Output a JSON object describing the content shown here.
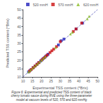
{
  "chart_data": {
    "type": "scatter",
    "xlabel": "Experimental TSS content (*Brix)",
    "ylabel": "Predicted TSS content (*Brix)",
    "xlim": [
      10,
      50
    ],
    "ylim": [
      10,
      50
    ],
    "xticks": [
      10,
      15,
      20,
      25,
      30,
      35,
      40,
      45,
      50
    ],
    "yticks": [
      10,
      15,
      20,
      25,
      30,
      35,
      40,
      45,
      50
    ],
    "grid": false,
    "legend": "upper right",
    "series": [
      {
        "type": "line",
        "color": "#5555bb",
        "line_style": "dashed",
        "x": [
          10,
          50
        ],
        "y": [
          10,
          50
        ]
      },
      {
        "name": "520 mmH",
        "color": "#2222bb",
        "marker": "square",
        "x": [
          13.0,
          14.0,
          15.5,
          16.5,
          17.5,
          18.5,
          19.5,
          20.5,
          21.5,
          22.5,
          23.5,
          29.0,
          30.5,
          32.0,
          38.5,
          42.0
        ],
        "y": [
          13.0,
          14.0,
          15.5,
          16.5,
          17.5,
          18.5,
          19.5,
          20.5,
          21.5,
          22.5,
          23.5,
          29.0,
          31.5,
          32.5,
          38.5,
          42.0
        ]
      },
      {
        "name": "570 mmH",
        "color": "#cc1111",
        "marker": "square",
        "x": [
          13.5,
          14.5,
          15.5,
          16.5,
          17.5,
          18.5,
          20.0,
          21.0,
          22.0,
          23.0,
          24.5,
          25.5,
          26.5,
          28.0,
          30.0,
          37.0,
          38.5,
          41.5
        ],
        "y": [
          13.5,
          14.5,
          15.5,
          16.5,
          17.5,
          18.5,
          20.0,
          21.0,
          22.0,
          23.0,
          24.5,
          25.5,
          26.5,
          28.0,
          31.0,
          37.0,
          38.5,
          42.0
        ]
      },
      {
        "name": "620 mmH",
        "color": "#88bb22",
        "marker": "triangle",
        "x": [
          13.0,
          14.0,
          15.0,
          16.0,
          17.0,
          18.0,
          19.0,
          20.0,
          21.0,
          22.0,
          27.5,
          35.5,
          36.5,
          44.5,
          45.5
        ],
        "y": [
          13.0,
          14.0,
          15.0,
          16.0,
          17.0,
          18.0,
          19.0,
          20.0,
          21.0,
          22.0,
          27.5,
          35.5,
          36.5,
          44.5,
          46.0
        ]
      }
    ],
    "annotations": [
      "Figure 6: Experimental and predicted TSS content of black\ncherry tomato sauce during RVE using the three-parameter\nmodel at vacuum levels of 520, 570 and 620 mmHg"
    ]
  }
}
